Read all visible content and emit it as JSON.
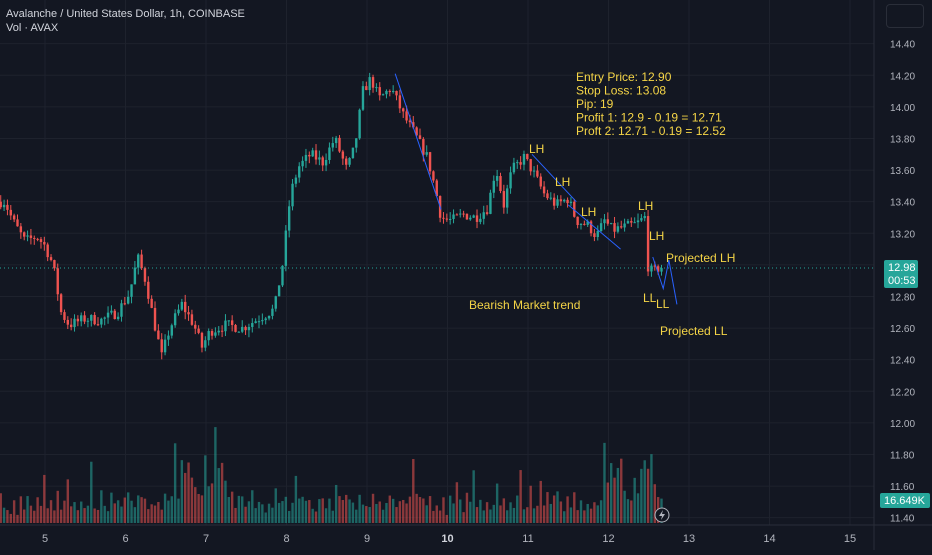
{
  "header": {
    "title": "Avalanche / United States Dollar, 1h, COINBASE",
    "volume_label": "Vol · AVAX"
  },
  "colors": {
    "background": "#131722",
    "grid": "#1e222d",
    "up": "#26a69a",
    "down": "#ef5350",
    "annotation": "#f5d547",
    "trendline": "#2962ff",
    "price_tag": "#26a69a",
    "volume_tag": "#26a69a"
  },
  "badges": {
    "last_price": "12.98",
    "countdown": "00:53",
    "volume": "16.649K"
  },
  "annotations": {
    "trade_lines": [
      "Entry Price: 12.90",
      "Stop Loss: 13.08",
      "Pip: 19",
      "Profit 1: 12.9 - 0.19 = 12.71",
      "Proft 2: 12.71 - 0.19 = 12.52"
    ],
    "trend_label": "Bearish Market trend",
    "lh": "LH",
    "ll": "LL",
    "projected_lh": "Projected LH",
    "projected_ll": "Projected LL"
  },
  "chart_data": {
    "type": "candlestick",
    "symbol": "AVAX/USD",
    "interval": "1h",
    "exchange": "COINBASE",
    "ylim": [
      11.35,
      14.55
    ],
    "y_ticks": [
      "11.40",
      "11.60",
      "11.80",
      "12.00",
      "12.20",
      "12.40",
      "12.60",
      "12.80",
      "13.00",
      "13.20",
      "13.40",
      "13.60",
      "13.80",
      "14.00",
      "14.20",
      "14.40"
    ],
    "x_ticks": [
      "5",
      "6",
      "7",
      "8",
      "9",
      "10",
      "11",
      "12",
      "13",
      "14",
      "15"
    ],
    "last_price": 12.98,
    "price_path": [
      [
        4.5,
        13.4
      ],
      [
        4.6,
        13.28
      ],
      [
        4.75,
        13.15
      ],
      [
        4.9,
        13.18
      ],
      [
        5.0,
        13.12
      ],
      [
        5.1,
        13.0
      ],
      [
        5.2,
        12.7
      ],
      [
        5.3,
        12.62
      ],
      [
        5.5,
        12.66
      ],
      [
        5.7,
        12.65
      ],
      [
        5.9,
        12.7
      ],
      [
        6.05,
        12.82
      ],
      [
        6.15,
        13.05
      ],
      [
        6.25,
        12.9
      ],
      [
        6.35,
        12.65
      ],
      [
        6.45,
        12.42
      ],
      [
        6.55,
        12.6
      ],
      [
        6.7,
        12.75
      ],
      [
        6.85,
        12.62
      ],
      [
        6.95,
        12.48
      ],
      [
        7.05,
        12.58
      ],
      [
        7.25,
        12.62
      ],
      [
        7.45,
        12.6
      ],
      [
        7.65,
        12.66
      ],
      [
        7.85,
        12.72
      ],
      [
        7.95,
        13.0
      ],
      [
        8.05,
        13.45
      ],
      [
        8.15,
        13.62
      ],
      [
        8.3,
        13.7
      ],
      [
        8.45,
        13.65
      ],
      [
        8.6,
        13.8
      ],
      [
        8.75,
        13.6
      ],
      [
        8.85,
        13.75
      ],
      [
        8.95,
        14.1
      ],
      [
        9.05,
        14.18
      ],
      [
        9.15,
        14.05
      ],
      [
        9.3,
        14.12
      ],
      [
        9.45,
        13.95
      ],
      [
        9.6,
        13.82
      ],
      [
        9.75,
        13.68
      ],
      [
        9.85,
        13.48
      ],
      [
        9.92,
        13.3
      ],
      [
        10.05,
        13.28
      ],
      [
        10.2,
        13.32
      ],
      [
        10.35,
        13.3
      ],
      [
        10.5,
        13.36
      ],
      [
        10.6,
        13.62
      ],
      [
        10.7,
        13.38
      ],
      [
        10.8,
        13.6
      ],
      [
        10.95,
        13.68
      ],
      [
        11.05,
        13.6
      ],
      [
        11.2,
        13.45
      ],
      [
        11.35,
        13.38
      ],
      [
        11.5,
        13.42
      ],
      [
        11.6,
        13.28
      ],
      [
        11.75,
        13.25
      ],
      [
        11.85,
        13.18
      ],
      [
        11.95,
        13.28
      ],
      [
        12.05,
        13.22
      ],
      [
        12.2,
        13.24
      ],
      [
        12.35,
        13.26
      ],
      [
        12.45,
        13.3
      ],
      [
        12.48,
        13.0
      ],
      [
        12.55,
        12.95
      ],
      [
        12.62,
        12.98
      ]
    ],
    "volume": [
      0.3,
      0.15,
      0.2,
      0.12,
      0.25,
      0.1,
      0.35,
      0.18,
      0.42,
      0.22,
      0.15,
      0.28,
      0.2,
      0.55,
      0.18,
      0.25,
      0.12,
      0.3,
      0.16,
      0.22,
      0.4,
      0.18,
      0.26,
      0.14,
      0.34,
      0.2,
      0.28,
      0.6,
      0.22,
      0.18,
      0.35,
      0.24,
      0.16,
      0.45,
      0.2,
      0.3,
      0.18,
      0.26,
      0.5,
      0.22,
      0.15,
      0.28,
      0.24,
      0.38,
      0.2,
      0.3,
      0.16,
      0.25,
      0.18,
      0.34,
      0.22,
      0.28,
      0.8,
      0.4,
      0.95,
      0.55,
      0.62,
      0.7,
      0.48,
      0.36,
      0.28,
      0.72,
      0.4,
      0.58,
      0.9,
      0.5,
      0.66,
      0.44,
      0.38,
      0.3,
      0.22,
      0.35,
      0.28,
      0.2,
      0.26,
      0.3,
      0.18,
      0.24,
      0.2,
      0.16,
      0.28,
      0.22,
      0.34,
      0.26,
      0.2,
      0.3,
      0.18,
      0.24,
      0.55,
      0.4,
      0.3,
      0.22,
      0.28,
      0.2,
      0.18,
      0.26,
      0.3,
      0.22,
      0.24,
      0.2,
      0.36,
      0.28,
      0.22,
      0.3,
      0.25,
      0.2,
      0.18,
      0.3,
      0.22,
      0.28,
      0.24,
      0.45,
      0.3,
      0.25,
      0.2,
      0.28,
      0.35,
      0.26,
      0.22,
      0.3,
      0.24,
      0.2,
      0.28,
      0.62,
      0.42,
      0.35,
      0.28,
      0.22
    ]
  }
}
